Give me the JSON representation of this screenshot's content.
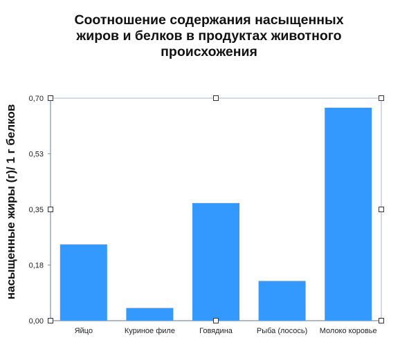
{
  "chart_data": {
    "type": "bar",
    "title_lines": [
      "Соотношение содержания насыщенных",
      "жиров и белков  в продуктах животного",
      "происхожения"
    ],
    "xlabel": "",
    "ylabel": "насыщенные жиры (г)/ 1 г белков",
    "categories": [
      "Яйцо",
      "Куриное филе",
      "Говядина",
      "Рыба (лосось)",
      "Молоко коровье"
    ],
    "values": [
      0.24,
      0.04,
      0.37,
      0.125,
      0.67
    ],
    "ylim": [
      0,
      0.7
    ],
    "yticks": [
      "0,00",
      "0,18",
      "0,35",
      "0,53",
      "0,70"
    ],
    "grid": false,
    "legend": "none",
    "colors": {
      "bar": "#3399FF",
      "axis": "#7f8fa6",
      "frame": "#aab4c8",
      "handle": "#333333"
    }
  }
}
